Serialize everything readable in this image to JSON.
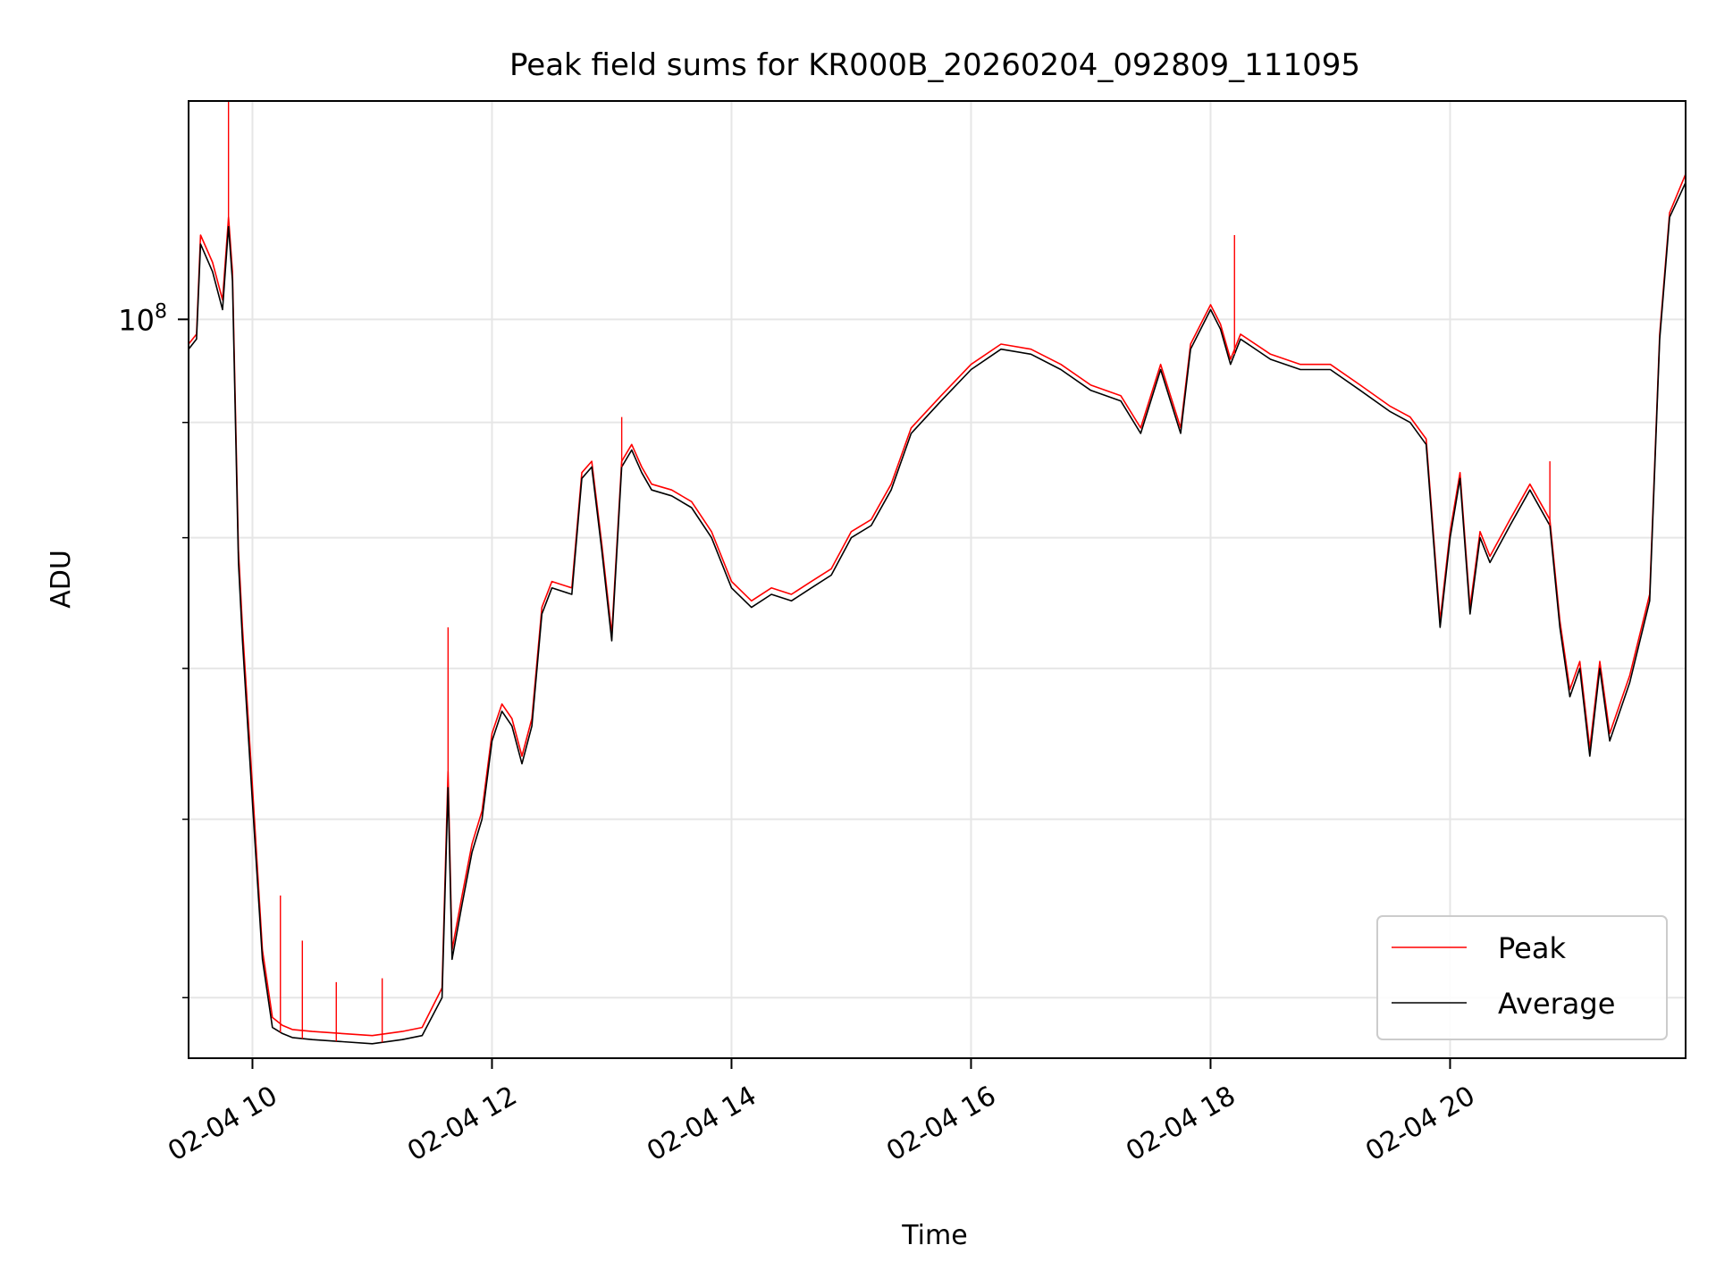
{
  "chart_data": {
    "type": "line",
    "title": "Peak field sums for KR000B_20260204_092809_111095",
    "xlabel": "Time",
    "ylabel": "ADU",
    "xlim": [
      "2026-02-04T09:28",
      "2026-02-04T21:58"
    ],
    "ylim": [
      47000000,
      125000000
    ],
    "yscale": "log",
    "grid": true,
    "legend_position": "lower-right",
    "x_tick_labels": [
      "02-04 10",
      "02-04 12",
      "02-04 14",
      "02-04 16",
      "02-04 18",
      "02-04 20"
    ],
    "x_ticks": [
      "2026-02-04T10:00",
      "2026-02-04T12:00",
      "2026-02-04T14:00",
      "2026-02-04T16:00",
      "2026-02-04T18:00",
      "2026-02-04T20:00"
    ],
    "y_tick_label": {
      "base": "10",
      "exp": "8"
    },
    "y_major_tick": 100000000,
    "y_minor_ticks": [
      50000000,
      60000000,
      70000000,
      80000000,
      90000000
    ],
    "series": [
      {
        "name": "Average",
        "color": "#000000",
        "x": [
          "2026-02-04T09:28",
          "2026-02-04T09:32",
          "2026-02-04T09:34",
          "2026-02-04T09:40",
          "2026-02-04T09:45",
          "2026-02-04T09:48",
          "2026-02-04T09:50",
          "2026-02-04T09:53",
          "2026-02-04T09:55",
          "2026-02-04T10:00",
          "2026-02-04T10:05",
          "2026-02-04T10:10",
          "2026-02-04T10:15",
          "2026-02-04T10:20",
          "2026-02-04T10:30",
          "2026-02-04T10:45",
          "2026-02-04T11:00",
          "2026-02-04T11:15",
          "2026-02-04T11:25",
          "2026-02-04T11:35",
          "2026-02-04T11:38",
          "2026-02-04T11:40",
          "2026-02-04T11:45",
          "2026-02-04T11:50",
          "2026-02-04T11:55",
          "2026-02-04T12:00",
          "2026-02-04T12:05",
          "2026-02-04T12:10",
          "2026-02-04T12:15",
          "2026-02-04T12:20",
          "2026-02-04T12:25",
          "2026-02-04T12:30",
          "2026-02-04T12:40",
          "2026-02-04T12:45",
          "2026-02-04T12:50",
          "2026-02-04T12:55",
          "2026-02-04T13:00",
          "2026-02-04T13:05",
          "2026-02-04T13:10",
          "2026-02-04T13:15",
          "2026-02-04T13:20",
          "2026-02-04T13:30",
          "2026-02-04T13:40",
          "2026-02-04T13:50",
          "2026-02-04T14:00",
          "2026-02-04T14:10",
          "2026-02-04T14:20",
          "2026-02-04T14:30",
          "2026-02-04T14:40",
          "2026-02-04T14:50",
          "2026-02-04T15:00",
          "2026-02-04T15:10",
          "2026-02-04T15:20",
          "2026-02-04T15:30",
          "2026-02-04T15:45",
          "2026-02-04T16:00",
          "2026-02-04T16:15",
          "2026-02-04T16:30",
          "2026-02-04T16:45",
          "2026-02-04T17:00",
          "2026-02-04T17:15",
          "2026-02-04T17:25",
          "2026-02-04T17:35",
          "2026-02-04T17:45",
          "2026-02-04T17:50",
          "2026-02-04T18:00",
          "2026-02-04T18:05",
          "2026-02-04T18:10",
          "2026-02-04T18:15",
          "2026-02-04T18:30",
          "2026-02-04T18:45",
          "2026-02-04T19:00",
          "2026-02-04T19:15",
          "2026-02-04T19:30",
          "2026-02-04T19:40",
          "2026-02-04T19:48",
          "2026-02-04T19:55",
          "2026-02-04T20:00",
          "2026-02-04T20:05",
          "2026-02-04T20:10",
          "2026-02-04T20:15",
          "2026-02-04T20:20",
          "2026-02-04T20:30",
          "2026-02-04T20:40",
          "2026-02-04T20:50",
          "2026-02-04T20:55",
          "2026-02-04T21:00",
          "2026-02-04T21:05",
          "2026-02-04T21:10",
          "2026-02-04T21:15",
          "2026-02-04T21:20",
          "2026-02-04T21:30",
          "2026-02-04T21:40",
          "2026-02-04T21:45",
          "2026-02-04T21:50",
          "2026-02-04T21:58"
        ],
        "y": [
          97000000,
          98000000,
          108000000,
          105000000,
          101000000,
          110000000,
          104000000,
          78000000,
          72000000,
          61000000,
          52000000,
          48500000,
          48200000,
          48000000,
          47900000,
          47800000,
          47700000,
          47900000,
          48100000,
          50000000,
          62000000,
          52000000,
          55000000,
          58000000,
          60000000,
          65000000,
          67000000,
          66000000,
          63500000,
          66000000,
          74000000,
          76000000,
          75500000,
          85000000,
          86000000,
          79000000,
          72000000,
          86000000,
          87500000,
          85500000,
          84000000,
          83500000,
          82500000,
          80000000,
          76000000,
          74500000,
          75500000,
          75000000,
          76000000,
          77000000,
          80000000,
          81000000,
          84000000,
          89000000,
          92000000,
          95000000,
          97000000,
          96500000,
          95000000,
          93000000,
          92000000,
          89000000,
          95000000,
          89000000,
          97000000,
          101000000,
          99000000,
          95500000,
          98000000,
          96000000,
          95000000,
          95000000,
          93000000,
          91000000,
          90000000,
          88000000,
          73000000,
          80000000,
          85000000,
          74000000,
          80000000,
          78000000,
          81000000,
          84000000,
          81000000,
          73000000,
          68000000,
          70000000,
          64000000,
          70000000,
          65000000,
          69000000,
          75000000,
          98000000,
          111000000,
          115000000
        ]
      },
      {
        "name": "Peak",
        "color": "#ff0000",
        "x": [
          "2026-02-04T09:28",
          "2026-02-04T09:32",
          "2026-02-04T09:34",
          "2026-02-04T09:40",
          "2026-02-04T09:45",
          "2026-02-04T09:48",
          "2026-02-04T09:50",
          "2026-02-04T09:53",
          "2026-02-04T09:55",
          "2026-02-04T10:00",
          "2026-02-04T10:05",
          "2026-02-04T10:10",
          "2026-02-04T10:15",
          "2026-02-04T10:20",
          "2026-02-04T10:30",
          "2026-02-04T10:45",
          "2026-02-04T11:00",
          "2026-02-04T11:15",
          "2026-02-04T11:25",
          "2026-02-04T11:35",
          "2026-02-04T11:38",
          "2026-02-04T11:40",
          "2026-02-04T11:45",
          "2026-02-04T11:50",
          "2026-02-04T11:55",
          "2026-02-04T12:00",
          "2026-02-04T12:05",
          "2026-02-04T12:10",
          "2026-02-04T12:15",
          "2026-02-04T12:20",
          "2026-02-04T12:25",
          "2026-02-04T12:30",
          "2026-02-04T12:40",
          "2026-02-04T12:45",
          "2026-02-04T12:50",
          "2026-02-04T12:55",
          "2026-02-04T13:00",
          "2026-02-04T13:05",
          "2026-02-04T13:10",
          "2026-02-04T13:15",
          "2026-02-04T13:20",
          "2026-02-04T13:30",
          "2026-02-04T13:40",
          "2026-02-04T13:50",
          "2026-02-04T14:00",
          "2026-02-04T14:10",
          "2026-02-04T14:20",
          "2026-02-04T14:30",
          "2026-02-04T14:40",
          "2026-02-04T14:50",
          "2026-02-04T15:00",
          "2026-02-04T15:10",
          "2026-02-04T15:20",
          "2026-02-04T15:30",
          "2026-02-04T15:45",
          "2026-02-04T16:00",
          "2026-02-04T16:15",
          "2026-02-04T16:30",
          "2026-02-04T16:45",
          "2026-02-04T17:00",
          "2026-02-04T17:15",
          "2026-02-04T17:25",
          "2026-02-04T17:35",
          "2026-02-04T17:45",
          "2026-02-04T17:50",
          "2026-02-04T18:00",
          "2026-02-04T18:05",
          "2026-02-04T18:10",
          "2026-02-04T18:15",
          "2026-02-04T18:30",
          "2026-02-04T18:45",
          "2026-02-04T19:00",
          "2026-02-04T19:15",
          "2026-02-04T19:30",
          "2026-02-04T19:40",
          "2026-02-04T19:48",
          "2026-02-04T19:55",
          "2026-02-04T20:00",
          "2026-02-04T20:05",
          "2026-02-04T20:10",
          "2026-02-04T20:15",
          "2026-02-04T20:20",
          "2026-02-04T20:30",
          "2026-02-04T20:40",
          "2026-02-04T20:50",
          "2026-02-04T20:55",
          "2026-02-04T21:00",
          "2026-02-04T21:05",
          "2026-02-04T21:10",
          "2026-02-04T21:15",
          "2026-02-04T21:20",
          "2026-02-04T21:30",
          "2026-02-04T21:40",
          "2026-02-04T21:45",
          "2026-02-04T21:50",
          "2026-02-04T21:58"
        ],
        "y": [
          97500000,
          98500000,
          109000000,
          106000000,
          102000000,
          111000000,
          105000000,
          79000000,
          73000000,
          62000000,
          52500000,
          49000000,
          48600000,
          48400000,
          48300000,
          48200000,
          48100000,
          48300000,
          48500000,
          50500000,
          63000000,
          52500000,
          55500000,
          58500000,
          60500000,
          65500000,
          67500000,
          66500000,
          64000000,
          66500000,
          74500000,
          76500000,
          76000000,
          85500000,
          86500000,
          79500000,
          72500000,
          86500000,
          88000000,
          86000000,
          84500000,
          84000000,
          83000000,
          80500000,
          76500000,
          75000000,
          76000000,
          75500000,
          76500000,
          77500000,
          80500000,
          81500000,
          84500000,
          89500000,
          92500000,
          95500000,
          97500000,
          97000000,
          95500000,
          93500000,
          92500000,
          89500000,
          95500000,
          89500000,
          97500000,
          101500000,
          99500000,
          96000000,
          98500000,
          96500000,
          95500000,
          95500000,
          93500000,
          91500000,
          90500000,
          88500000,
          73500000,
          80500000,
          85500000,
          74500000,
          80500000,
          78500000,
          81500000,
          84500000,
          81500000,
          73500000,
          68500000,
          70500000,
          64500000,
          70500000,
          65500000,
          69500000,
          75500000,
          98500000,
          111500000,
          116000000
        ]
      }
    ],
    "peak_spikes": [
      {
        "x": "2026-02-04T09:48",
        "y": 125000000
      },
      {
        "x": "2026-02-04T10:14",
        "y": 55500000
      },
      {
        "x": "2026-02-04T10:25",
        "y": 53000000
      },
      {
        "x": "2026-02-04T10:42",
        "y": 50800000
      },
      {
        "x": "2026-02-04T11:05",
        "y": 51000000
      },
      {
        "x": "2026-02-04T11:38",
        "y": 73000000
      },
      {
        "x": "2026-02-04T13:05",
        "y": 90500000
      },
      {
        "x": "2026-02-04T18:12",
        "y": 109000000
      },
      {
        "x": "2026-02-04T20:50",
        "y": 86500000
      }
    ]
  },
  "legend": {
    "peak_label": "Peak",
    "average_label": "Average"
  }
}
